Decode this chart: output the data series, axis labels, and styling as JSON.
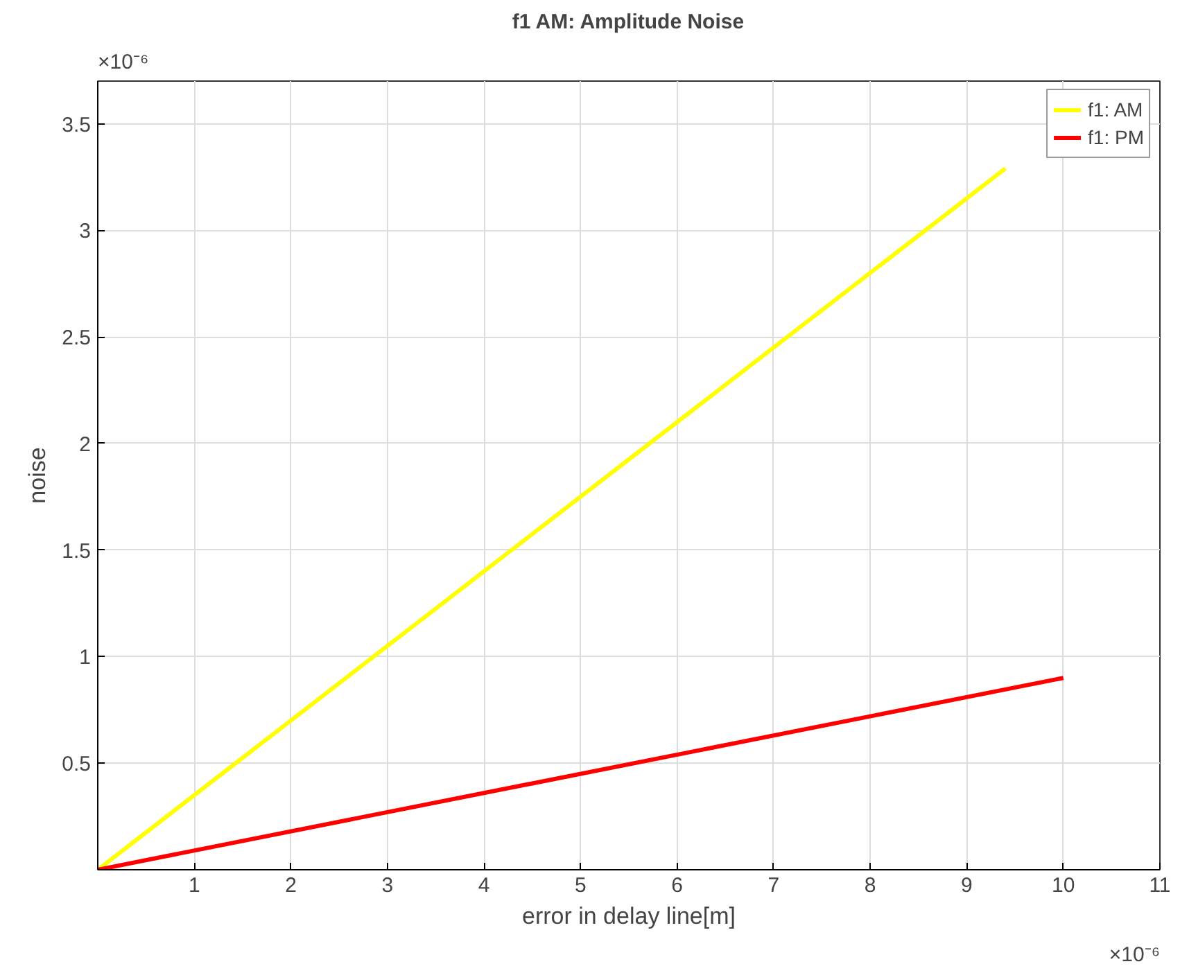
{
  "chart_data": {
    "type": "line",
    "title": "f1 AM: Amplitude Noise",
    "xlabel": "error in delay line[m]",
    "ylabel": "noise",
    "x": [
      0,
      10
    ],
    "series": [
      {
        "name": "f1: AM",
        "color": "#ffff00",
        "x": [
          0,
          9.4
        ],
        "values": [
          0,
          3.29
        ]
      },
      {
        "name": "f1: PM",
        "color": "#ff0000",
        "values": [
          0,
          0.9
        ]
      }
    ],
    "xlim": [
      0,
      11
    ],
    "xticks": [
      1,
      2,
      3,
      4,
      5,
      6,
      7,
      8,
      9,
      10,
      11
    ],
    "ylim": [
      0,
      3.7
    ],
    "yticks": [
      0.5,
      1,
      1.5,
      2,
      2.5,
      3,
      3.5
    ],
    "annotations": [
      "×10⁻⁶",
      "×10⁻⁶"
    ],
    "grid": true,
    "legend": "top right",
    "line_style": "solid",
    "marker": "none"
  }
}
